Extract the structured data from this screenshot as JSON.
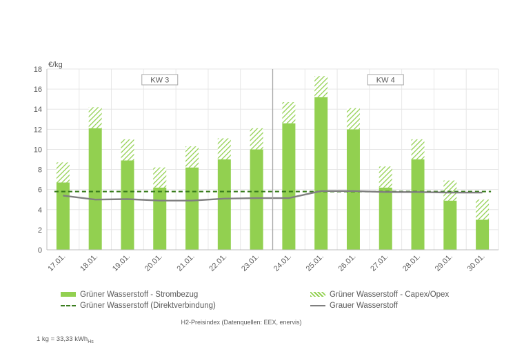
{
  "chart_data": {
    "type": "bar",
    "ylabel": "€/kg",
    "ylim": [
      0,
      18
    ],
    "yticks": [
      0,
      2,
      4,
      6,
      8,
      10,
      12,
      14,
      16,
      18
    ],
    "grid": true,
    "categories": [
      "17.01.",
      "18.01.",
      "19.01.",
      "20.01.",
      "21.01.",
      "22.01.",
      "23.01.",
      "24.01.",
      "25.01.",
      "26.01.",
      "27.01.",
      "28.01.",
      "29.01.",
      "30.01."
    ],
    "week_labels": [
      "KW 3",
      "KW 4"
    ],
    "series": [
      {
        "name": "Grüner Wasserstoff - Strombezug",
        "type": "bar",
        "color": "#92d050",
        "values": [
          6.7,
          12.1,
          8.9,
          6.2,
          8.2,
          9.0,
          10.0,
          12.6,
          15.2,
          12.0,
          6.2,
          9.0,
          4.9,
          3.0
        ]
      },
      {
        "name": "Grüner Wasserstoff - Capex/Opex",
        "type": "stacked-bar-hatched",
        "color": "#92d050",
        "values": [
          2.0,
          2.1,
          2.1,
          2.0,
          2.1,
          2.1,
          2.1,
          2.1,
          2.1,
          2.1,
          2.1,
          2.0,
          2.0,
          2.0
        ]
      },
      {
        "name": "Grüner Wasserstoff (Direktverbindung)",
        "type": "dashed-line",
        "color": "#3a7d1e",
        "values": [
          5.8,
          5.8,
          5.8,
          5.8,
          5.8,
          5.8,
          5.8,
          5.8,
          5.8,
          5.8,
          5.8,
          5.8,
          5.8,
          5.8
        ]
      },
      {
        "name": "Grauer Wasserstoff",
        "type": "line",
        "color": "#7f7f7f",
        "values": [
          5.4,
          5.0,
          5.05,
          4.9,
          4.9,
          5.1,
          5.15,
          5.15,
          5.85,
          5.85,
          5.75,
          5.75,
          5.7,
          5.7
        ]
      }
    ],
    "legend_position": "bottom",
    "source": "H2-Preisindex (Datenquellen: EEX, enervis)",
    "footnote": "1 kg = 33,33 kWh",
    "footnote_sub": "Hs"
  }
}
